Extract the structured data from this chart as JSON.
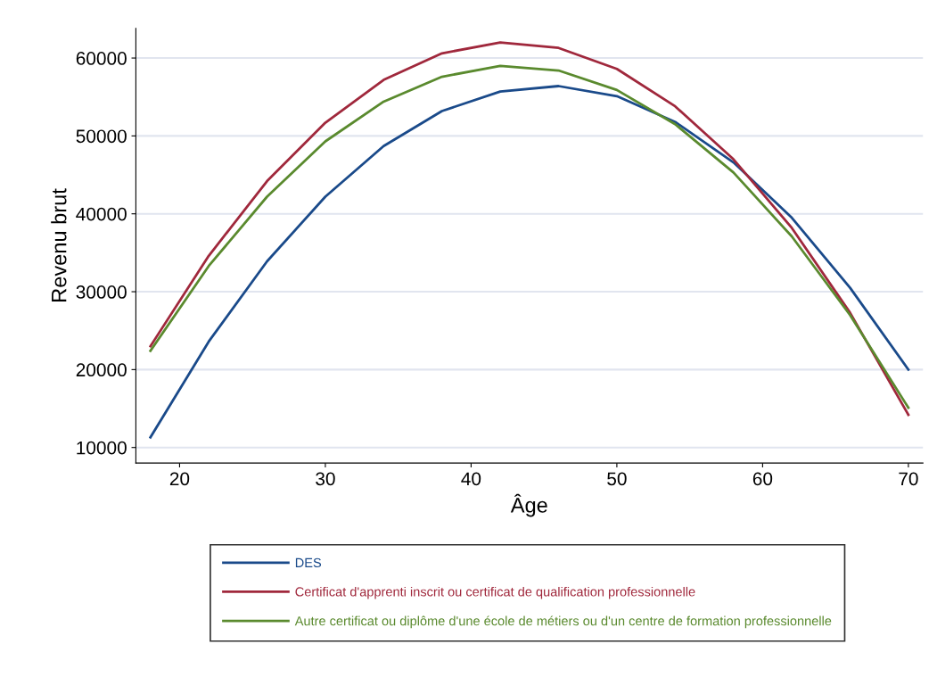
{
  "chart_data": {
    "type": "line",
    "xlabel": "Âge",
    "ylabel": "Revenu brut",
    "x": [
      18,
      22,
      26,
      30,
      34,
      38,
      42,
      46,
      50,
      54,
      58,
      62,
      66,
      70
    ],
    "series": [
      {
        "name": "DES",
        "color": "#1a4a8a",
        "values": [
          11300,
          23600,
          33900,
          42200,
          48700,
          53200,
          55700,
          56400,
          55100,
          51800,
          46600,
          39500,
          30500,
          20000
        ]
      },
      {
        "name": "Certificat d'apprenti inscrit ou certificat de qualification professionnelle",
        "color": "#a0283c",
        "values": [
          23000,
          34600,
          44200,
          51700,
          57200,
          60600,
          62000,
          61300,
          58600,
          53800,
          47000,
          38200,
          27300,
          14200
        ]
      },
      {
        "name": "Autre certificat ou diplôme d'une école de métiers ou d'un centre de formation professionnelle",
        "color": "#5a8a2e",
        "values": [
          22400,
          33300,
          42200,
          49300,
          54400,
          57600,
          59000,
          58400,
          55900,
          51500,
          45300,
          37100,
          27000,
          15100
        ]
      }
    ],
    "xlim": [
      17,
      71
    ],
    "xticks": [
      20,
      30,
      40,
      50,
      60,
      70
    ],
    "ylim": [
      8000,
      63800
    ],
    "yticks": [
      10000,
      20000,
      30000,
      40000,
      50000,
      60000
    ],
    "grid": "y",
    "legend": "bottom",
    "marker": "none",
    "line_style": "solid"
  }
}
